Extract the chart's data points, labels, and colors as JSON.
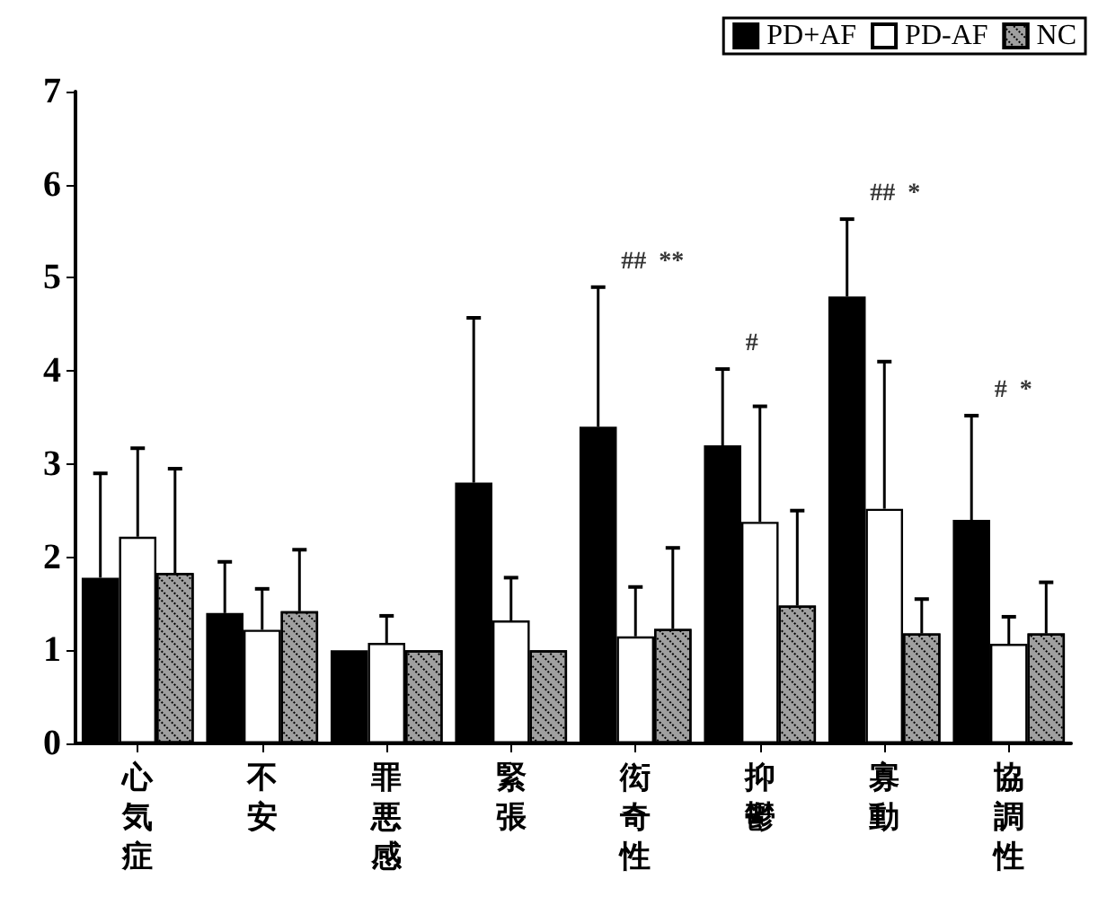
{
  "chart_data": {
    "type": "bar",
    "categories": [
      "心気症",
      "不安",
      "罪悪感",
      "緊張",
      "衒奇性",
      "抑鬱",
      "寡動",
      "協調性"
    ],
    "series": [
      {
        "name": "PD+AF",
        "color": "#000000",
        "values": [
          1.78,
          1.4,
          1.0,
          2.8,
          3.4,
          3.2,
          4.8,
          2.4
        ],
        "errors": [
          [
            1.78,
            2.9
          ],
          [
            1.4,
            1.95
          ],
          null,
          [
            2.8,
            4.57
          ],
          [
            3.4,
            4.9
          ],
          [
            3.2,
            4.02
          ],
          [
            4.8,
            5.63
          ],
          [
            2.4,
            3.52
          ]
        ]
      },
      {
        "name": "PD-AF",
        "color": "#ffffff",
        "values": [
          2.22,
          1.22,
          1.08,
          1.32,
          1.15,
          2.38,
          2.52,
          1.07
        ],
        "errors": [
          [
            2.22,
            3.17
          ],
          [
            1.22,
            1.66
          ],
          [
            1.08,
            1.37
          ],
          [
            1.32,
            1.78
          ],
          [
            1.15,
            1.68
          ],
          [
            2.38,
            3.62
          ],
          [
            2.52,
            4.1
          ],
          [
            1.07,
            1.36
          ]
        ]
      },
      {
        "name": "NC",
        "color": "#a0a0a0",
        "values": [
          1.83,
          1.42,
          1.0,
          1.0,
          1.23,
          1.48,
          1.18,
          1.18
        ],
        "errors": [
          [
            1.83,
            2.95
          ],
          [
            1.42,
            2.08
          ],
          null,
          null,
          [
            1.23,
            2.1
          ],
          [
            1.48,
            2.5
          ],
          [
            1.18,
            1.55
          ],
          [
            1.18,
            1.73
          ]
        ]
      }
    ],
    "ylim": [
      0,
      7
    ],
    "yticks": [
      0,
      1,
      2,
      3,
      4,
      5,
      6,
      7
    ],
    "grid": false,
    "legend": "top right",
    "annotations": [
      "##  **",
      "#",
      "##  *",
      "#  *"
    ]
  }
}
